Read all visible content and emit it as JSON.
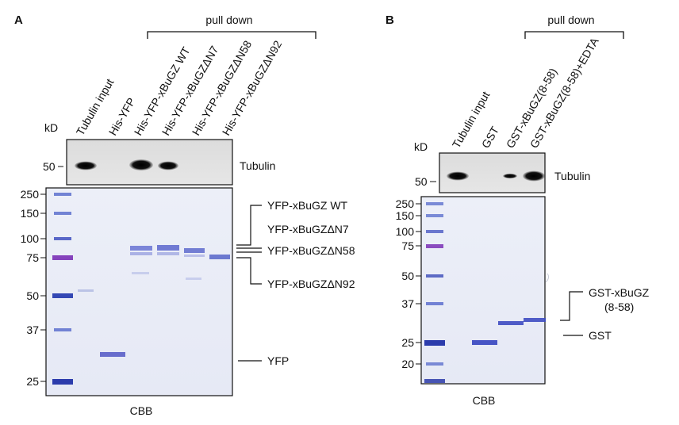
{
  "panel_a": {
    "letter": "A",
    "pull_down": "pull down",
    "lanes": [
      "Tubulin input",
      "His-YFP",
      "His-YFP-xBuGZ WT",
      "His-YFP-xBuGZΔN7",
      "His-YFP-xBuGZΔN58",
      "His-YFP-xBuGZΔN92"
    ],
    "kd": "kD",
    "blot_marker": "50",
    "blot_label": "Tubulin",
    "gel_markers": [
      "250",
      "150",
      "100",
      "75",
      "50",
      "37",
      "25"
    ],
    "band_labels": [
      "YFP-xBuGZ WT",
      "YFP-xBuGZΔN7",
      "YFP-xBuGZΔN58",
      "YFP-xBuGZΔN92",
      "YFP"
    ],
    "stain": "CBB"
  },
  "panel_b": {
    "letter": "B",
    "pull_down": "pull down",
    "lanes": [
      "Tubulin input",
      "GST",
      "GST-xBuGZ(8-58)",
      "GST-xBuGZ(8-58)+EDTA"
    ],
    "kd": "kD",
    "blot_marker": "50",
    "blot_label": "Tubulin",
    "gel_markers": [
      "250",
      "150",
      "100",
      "75",
      "50",
      "37",
      "25",
      "20"
    ],
    "band_label_line1": "GST-xBuGZ",
    "band_label_line2": "(8-58)",
    "band_label_gst": "GST",
    "stain": "CBB"
  }
}
